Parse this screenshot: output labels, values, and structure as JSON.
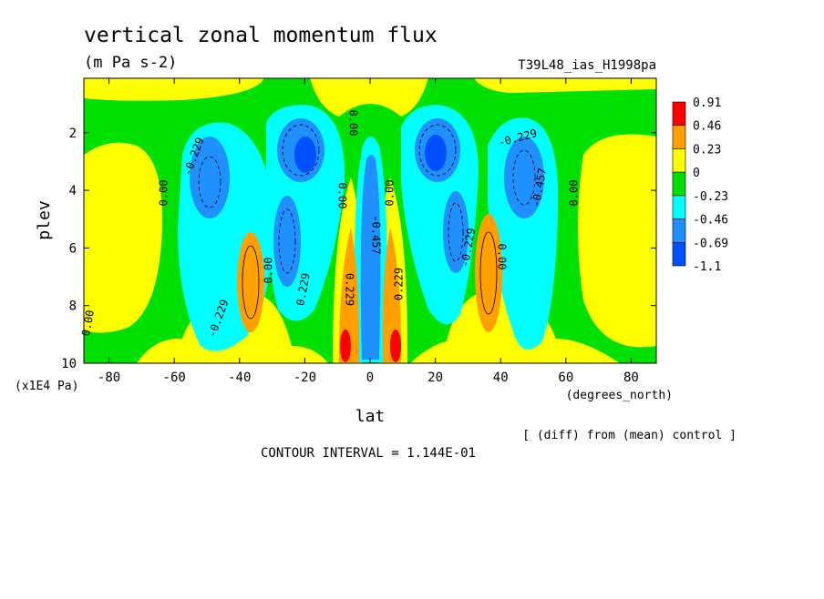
{
  "chart_data": {
    "type": "contour",
    "title": "vertical zonal momentum flux",
    "subtitle": "(m Pa s-2)",
    "experiment": "T39L48_ias_H1998pa",
    "x_label": "lat",
    "x_units": "(degrees_north)",
    "y_label": "plev",
    "y_units": "(x1E4 Pa)",
    "note": "[ (diff) from (mean) control ]",
    "contour_interval": "CONTOUR INTERVAL = 1.144E-01",
    "xlim": [
      -87.7,
      87.7
    ],
    "xticks": [
      -80,
      -60,
      -40,
      -20,
      0,
      20,
      40,
      60,
      80
    ],
    "ylim": [
      10,
      0.11
    ],
    "yticks": [
      2,
      4,
      6,
      8,
      10
    ],
    "colorbar": {
      "levels": [
        0.91,
        0.46,
        0.23,
        0,
        -0.23,
        -0.46,
        -0.69,
        -1.1
      ],
      "colors": [
        "#ff0000",
        "#ffa000",
        "#ffff00",
        "#00e000",
        "#00ffff",
        "#2090ff",
        "#0050ff"
      ]
    },
    "contour_labels": [
      "-0.229",
      "0.00",
      "0.00",
      "-0.229",
      "0.00",
      "0.229",
      "0.00",
      "0.00",
      "0.229",
      "0.00",
      "0.229",
      "-0.229",
      "-0.457",
      "0.00",
      "-0.229",
      "0.00",
      "-0.457"
    ]
  }
}
